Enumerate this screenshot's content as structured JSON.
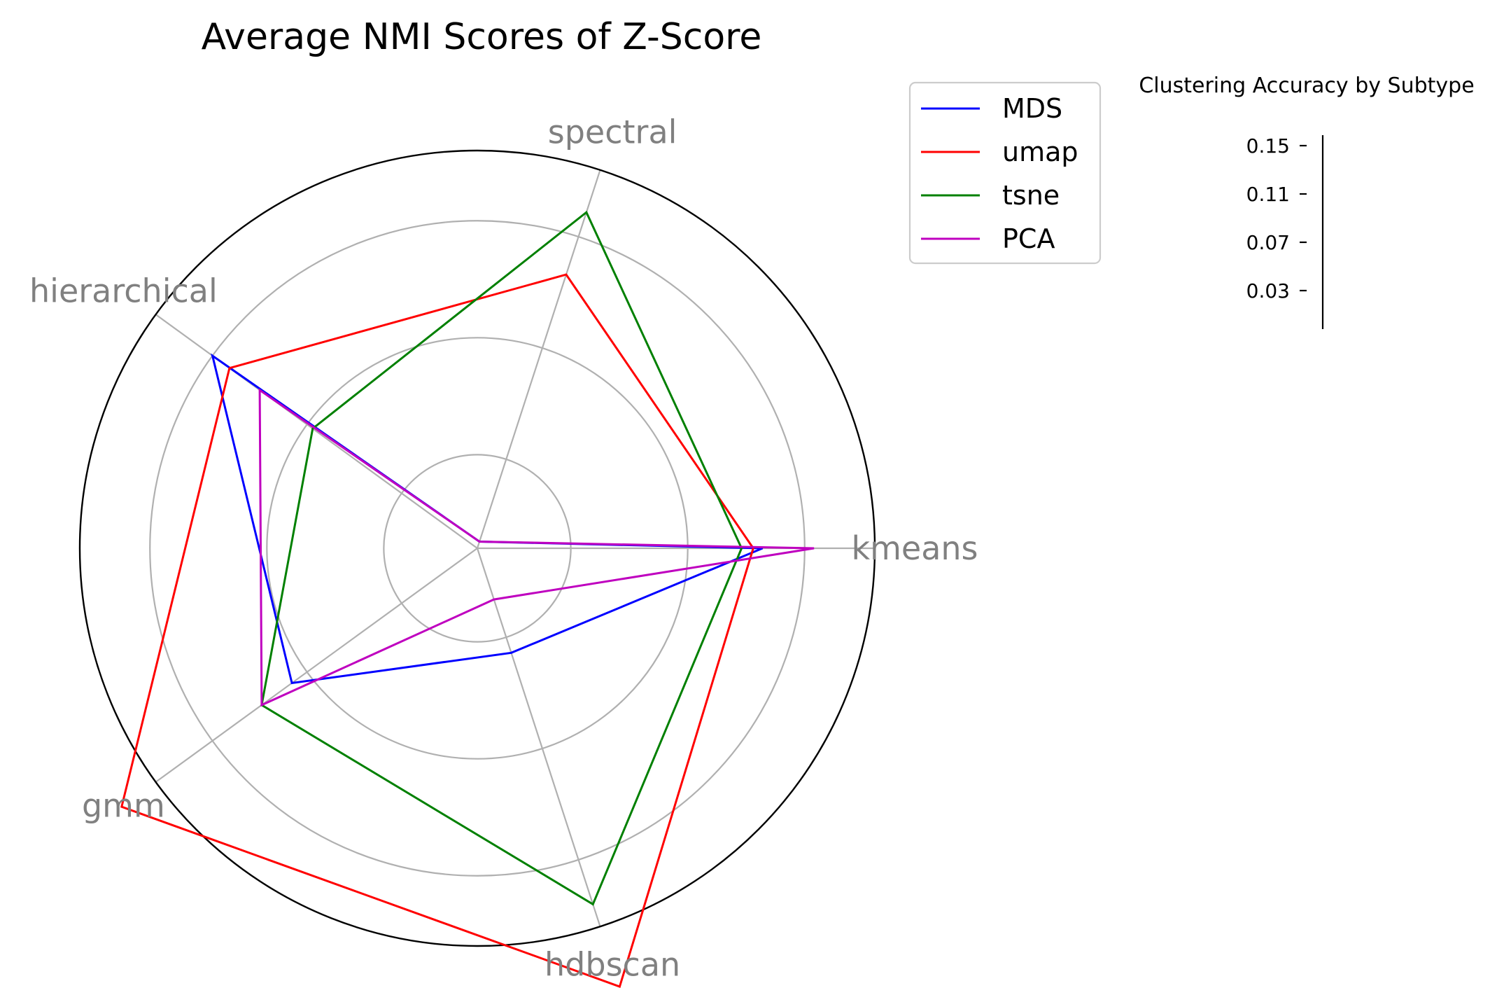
{
  "chart_data": {
    "type": "radar",
    "title": "Average NMI Scores of Z-Score",
    "categories": [
      "kmeans",
      "spectral",
      "hierarchical",
      "gmm",
      "hdbscan"
    ],
    "rlim": [
      0,
      0.17
    ],
    "radial_gridlines": [
      0.04,
      0.09,
      0.14
    ],
    "grid": true,
    "legend_position": "upper-right-outside",
    "series": [
      {
        "name": "MDS",
        "color": "#0000ff",
        "values": [
          0.122,
          0.003,
          0.14,
          0.098,
          0.047
        ]
      },
      {
        "name": "umap",
        "color": "#ff0000",
        "values": [
          0.118,
          0.123,
          0.131,
          0.188,
          0.197
        ]
      },
      {
        "name": "tsne",
        "color": "#008000",
        "values": [
          0.113,
          0.151,
          0.087,
          0.114,
          0.16
        ]
      },
      {
        "name": "PCA",
        "color": "#bf00bf",
        "values": [
          0.144,
          0.003,
          0.115,
          0.114,
          0.023
        ]
      }
    ],
    "colorbar": {
      "title": "Clustering Accuracy by Subtype",
      "ticks": [
        "0.15",
        "0.11",
        "0.07",
        "0.03"
      ]
    }
  }
}
